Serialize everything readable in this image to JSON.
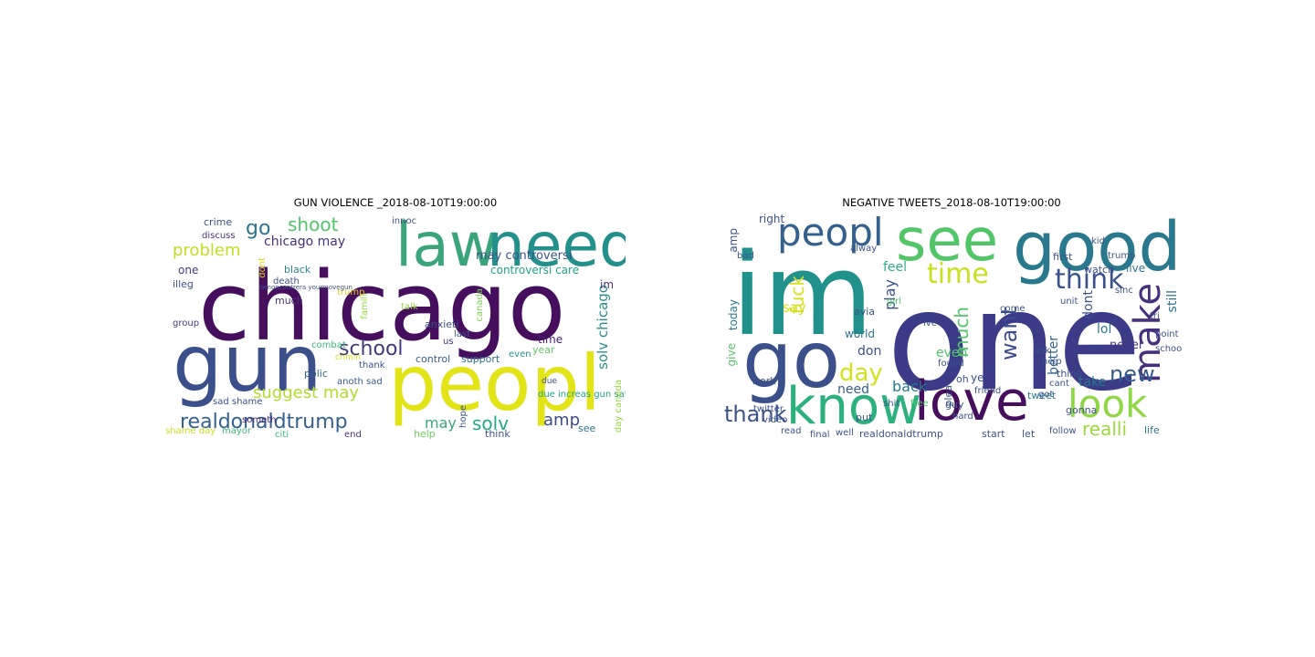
{
  "figure": {
    "panels": [
      {
        "title": "GUN VIOLENCE _2018-08-10T19:00:00",
        "words": [
          "chicago",
          "peopl",
          "gun",
          "law",
          "need",
          "realdonaldtrump",
          "school",
          "shoot",
          "go",
          "problem",
          "suggest may",
          "chicago may",
          "solv chicago",
          "controversi care",
          "may controversi",
          "may",
          "solv",
          "amp",
          "anxieti",
          "control",
          "support",
          "year",
          "time",
          "crime",
          "discuss",
          "one",
          "illeg",
          "black",
          "death",
          "much",
          "group",
          "combat",
          "polic",
          "thank",
          "anoth sad",
          "sad shame",
          "shame day",
          "mayor",
          "citi",
          "end",
          "think",
          "hope",
          "help",
          "see",
          "last",
          "us",
          "even",
          "due increas gun safeti",
          "day canada",
          "canada",
          "im",
          "talk",
          "famili",
          "crimin",
          "someth",
          "innoc",
          "trump",
          "dont",
          "ramoncontrera yourmovegun",
          "due"
        ]
      },
      {
        "title": "NEGATIVE TWEETS_2018-08-10T19:00:00",
        "words": [
          "one",
          "im",
          "go",
          "good",
          "see",
          "peopl",
          "love",
          "know",
          "look",
          "make",
          "think",
          "time",
          "day",
          "want",
          "new",
          "realli",
          "thank",
          "fuck",
          "say",
          "much",
          "need",
          "back",
          "take",
          "don",
          "even",
          "never",
          "better",
          "dont",
          "still",
          "lol",
          "play",
          "feel",
          "live",
          "watch",
          "trump",
          "first",
          "kid",
          "right",
          "amp",
          "today",
          "give",
          "work",
          "realdonaldtrump",
          "well",
          "start",
          "let",
          "gonna",
          "life",
          "world",
          "ye",
          "tweet",
          "follow",
          "thing",
          "help",
          "shit",
          "guy",
          "final",
          "put",
          "avia",
          "bad",
          "alway",
          "ask",
          "got",
          "cant",
          "come",
          "oh",
          "plea",
          "unit",
          "girl",
          "friend",
          "found",
          "ive",
          "free",
          "tri",
          "point",
          "school",
          "twitter",
          "video",
          "sinc",
          "hard",
          "read"
        ]
      }
    ]
  }
}
